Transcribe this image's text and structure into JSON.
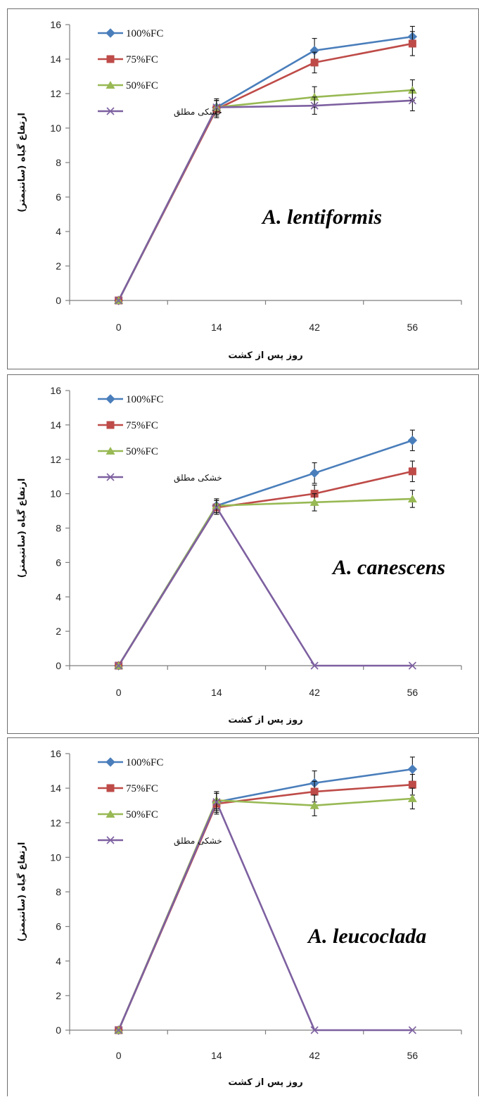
{
  "colors": {
    "s100": "#4a7ebb",
    "s75": "#be4b48",
    "s50": "#98b954",
    "s0": "#7d60a0",
    "axis": "#7f7f7f"
  },
  "chart_data": [
    {
      "type": "line",
      "species": "A. lentiformis",
      "xlabel": "روز پس از کشت",
      "ylabel": "ارتفاع گیاه (سانتیمتر)",
      "categories": [
        "0",
        "14",
        "42",
        "56"
      ],
      "yticks": [
        "0",
        "2",
        "4",
        "6",
        "8",
        "10",
        "12",
        "14",
        "16"
      ],
      "ylim": [
        0,
        16
      ],
      "series": [
        {
          "name": "100%FC",
          "marker": "diamond",
          "values": [
            0,
            11.2,
            14.5,
            15.3
          ],
          "err": [
            0,
            0.5,
            0.7,
            0.6
          ]
        },
        {
          "name": "75%FC",
          "marker": "square",
          "values": [
            0,
            11.1,
            13.8,
            14.9
          ],
          "err": [
            0,
            0.5,
            0.6,
            0.7
          ]
        },
        {
          "name": "50%FC",
          "marker": "triangle",
          "values": [
            0,
            11.2,
            11.8,
            12.2
          ],
          "err": [
            0,
            0.4,
            0.6,
            0.6
          ]
        },
        {
          "name": "خشکی مطلق",
          "marker": "x",
          "values": [
            0,
            11.2,
            11.3,
            11.6
          ],
          "err": [
            0,
            0.4,
            0.5,
            0.6
          ]
        }
      ]
    },
    {
      "type": "line",
      "species": "A. canescens",
      "xlabel": "روز پس از کشت",
      "ylabel": "ارتفاع گیاه (سانتیمتر)",
      "categories": [
        "0",
        "14",
        "42",
        "56"
      ],
      "yticks": [
        "0",
        "2",
        "4",
        "6",
        "8",
        "10",
        "12",
        "14",
        "16"
      ],
      "ylim": [
        0,
        16
      ],
      "series": [
        {
          "name": "100%FC",
          "marker": "diamond",
          "values": [
            0,
            9.3,
            11.2,
            13.1
          ],
          "err": [
            0,
            0.4,
            0.6,
            0.6
          ]
        },
        {
          "name": "75%FC",
          "marker": "square",
          "values": [
            0,
            9.2,
            10.0,
            11.3
          ],
          "err": [
            0,
            0.4,
            0.5,
            0.6
          ]
        },
        {
          "name": "50%FC",
          "marker": "triangle",
          "values": [
            0,
            9.3,
            9.5,
            9.7
          ],
          "err": [
            0,
            0.4,
            0.5,
            0.5
          ]
        },
        {
          "name": "خشکی مطلق",
          "marker": "x",
          "values": [
            0,
            9.2,
            0,
            0
          ],
          "err": [
            0,
            0.4,
            0,
            0
          ]
        }
      ]
    },
    {
      "type": "line",
      "species": "A. leucoclada",
      "xlabel": "روز پس از کشت",
      "ylabel": "ارتفاع گیاه (سانتیمتر)",
      "categories": [
        "0",
        "14",
        "42",
        "56"
      ],
      "yticks": [
        "0",
        "2",
        "4",
        "6",
        "8",
        "10",
        "12",
        "14",
        "16"
      ],
      "ylim": [
        0,
        16
      ],
      "series": [
        {
          "name": "100%FC",
          "marker": "diamond",
          "values": [
            0,
            13.2,
            14.3,
            15.1
          ],
          "err": [
            0,
            0.6,
            0.7,
            0.7
          ]
        },
        {
          "name": "75%FC",
          "marker": "square",
          "values": [
            0,
            13.1,
            13.8,
            14.2
          ],
          "err": [
            0,
            0.6,
            0.6,
            0.6
          ]
        },
        {
          "name": "50%FC",
          "marker": "triangle",
          "values": [
            0,
            13.3,
            13.0,
            13.4
          ],
          "err": [
            0,
            0.5,
            0.6,
            0.6
          ]
        },
        {
          "name": "خشکی مطلق",
          "marker": "x",
          "values": [
            0,
            13.2,
            0,
            0
          ],
          "err": [
            0,
            0.5,
            0,
            0
          ]
        }
      ]
    }
  ]
}
